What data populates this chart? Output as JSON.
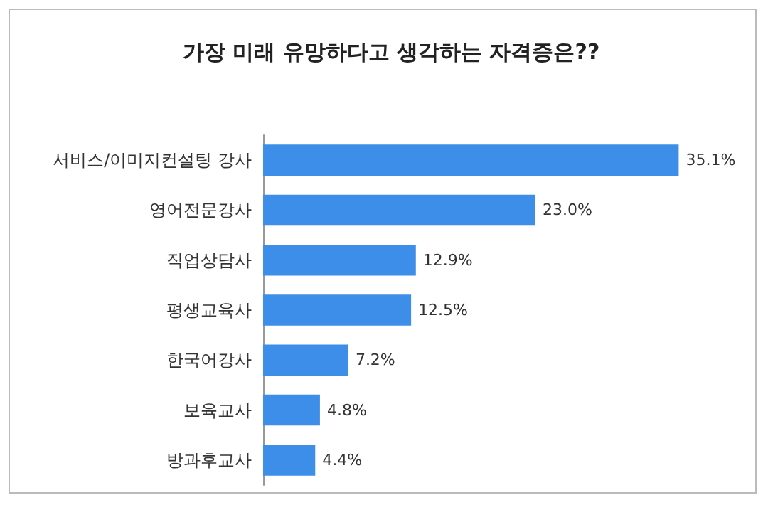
{
  "chart_data": {
    "type": "bar",
    "orientation": "horizontal",
    "title": "가장 미래 유망하다고 생각하는 자격증은??",
    "categories": [
      "서비스/이미지컨설팅 강사",
      "영어전문강사",
      "직업상담사",
      "평생교육사",
      "한국어강사",
      "보육교사",
      "방과후교사"
    ],
    "values": [
      35.1,
      23.0,
      12.9,
      12.5,
      7.2,
      4.8,
      4.4
    ],
    "value_labels": [
      "35.1%",
      "23.0%",
      "12.9%",
      "12.5%",
      "7.2%",
      "4.8%",
      "4.4%"
    ],
    "color": "#3d8ee8"
  }
}
